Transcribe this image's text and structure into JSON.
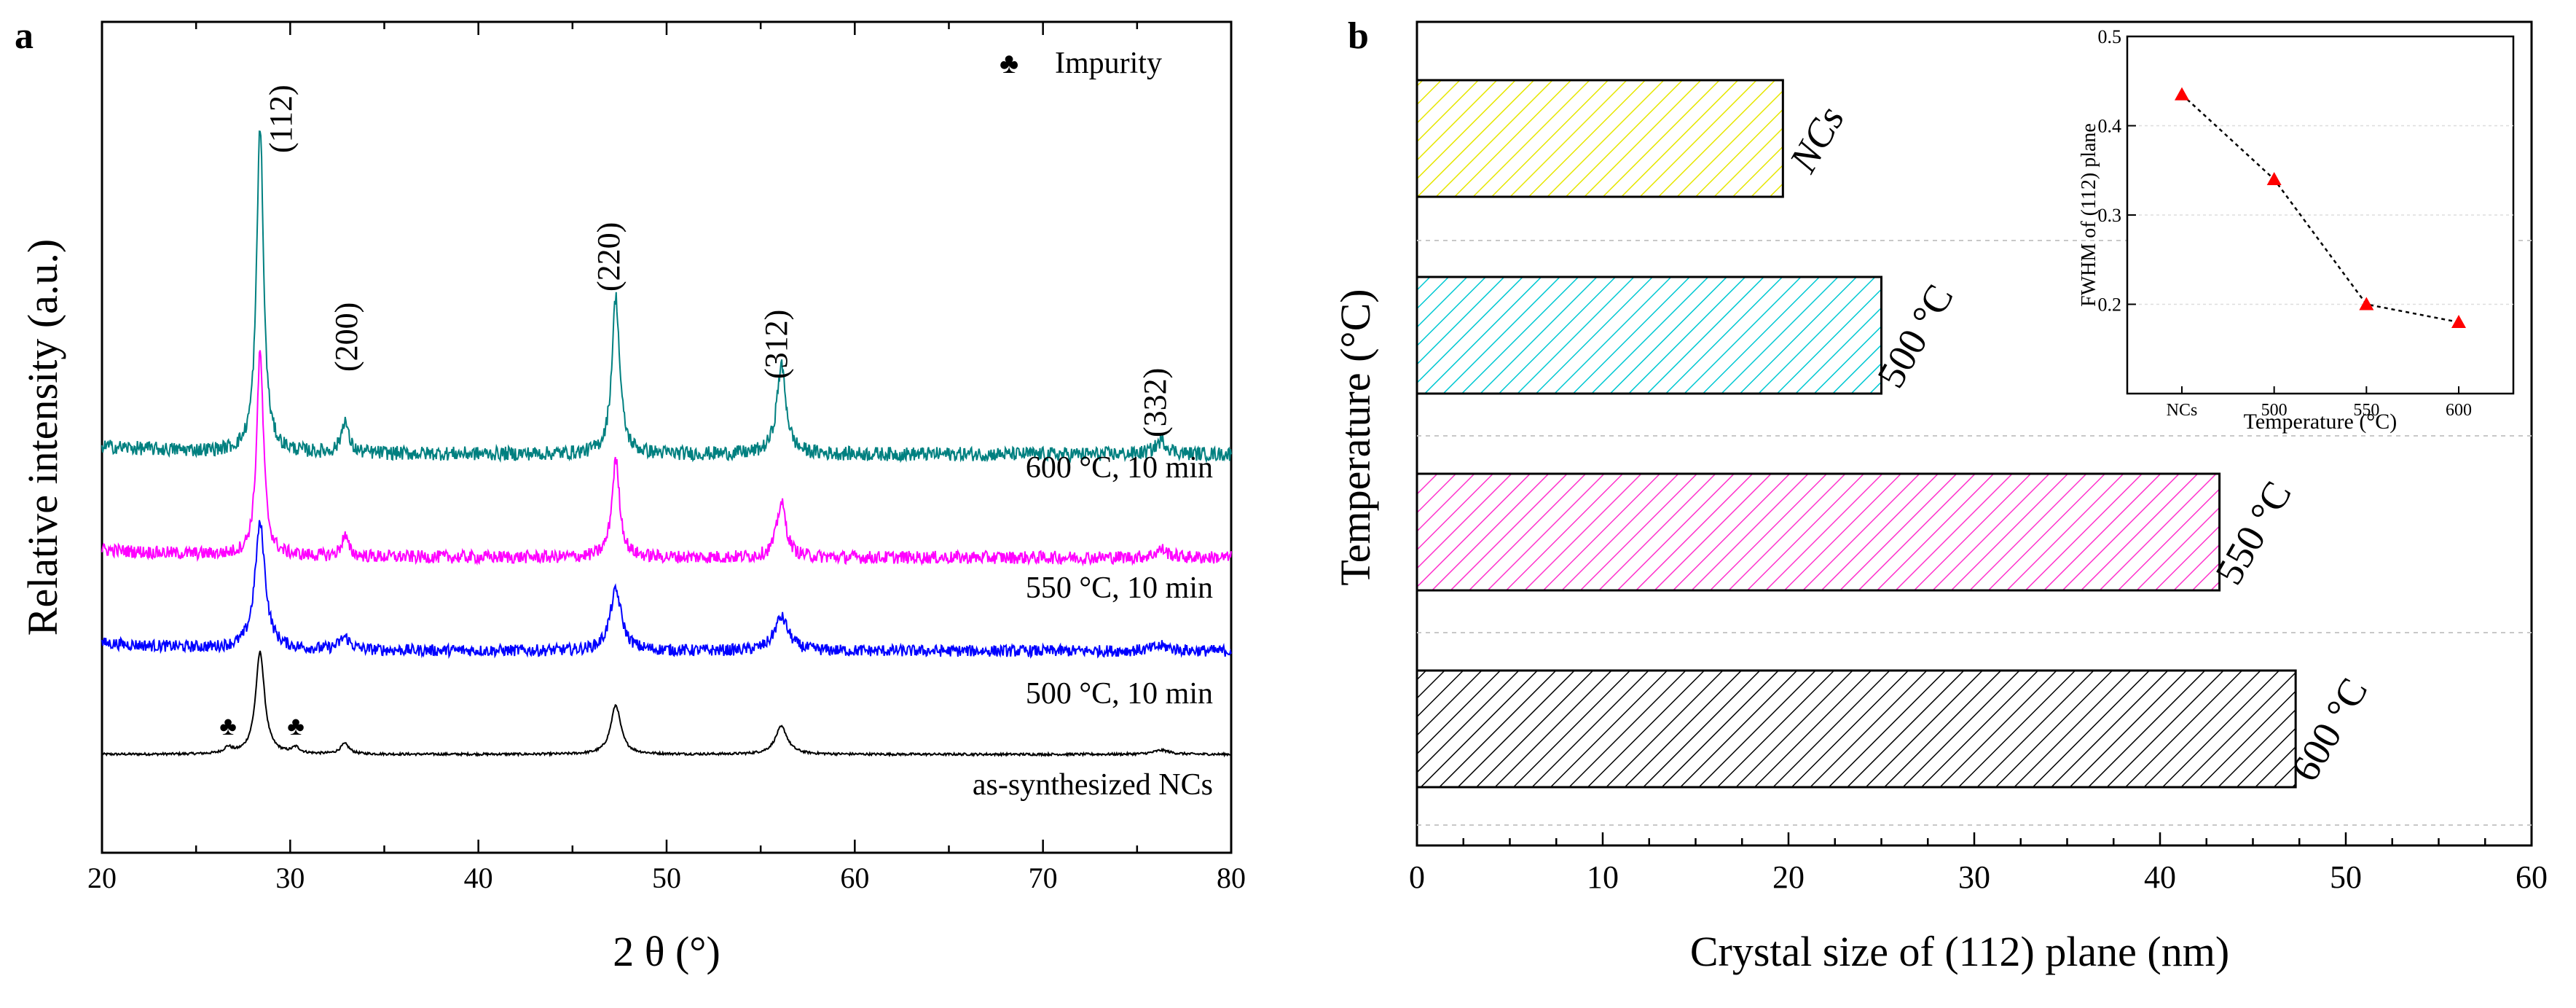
{
  "chart_data": [
    {
      "panel_label": "a",
      "type": "line",
      "title": "",
      "xlabel": "2 θ (°)",
      "ylabel": "Relative intensity (a.u.)",
      "xlim": [
        20,
        80
      ],
      "xticks": [
        20,
        30,
        40,
        50,
        60,
        70,
        80
      ],
      "y_units": "arbitrary (stacked traces)",
      "legend": {
        "symbol": "♣",
        "text": "Impurity",
        "placement": "top-right"
      },
      "series": [
        {
          "name": "as-synthesized NCs",
          "label_text": "as-synthesized NCs",
          "color": "#000000",
          "baseline": 0.0,
          "peak_scale": 1.0,
          "noise": 0.012,
          "impurity_peaks": true
        },
        {
          "name": "500 °C, 10 min",
          "label_text": "500 °C, 10 min",
          "color": "#0000ff",
          "baseline": 1.05,
          "peak_scale": 1.05,
          "noise": 0.02,
          "impurity_peaks": false
        },
        {
          "name": "550 °C, 10 min",
          "label_text": "550 °C, 10 min",
          "color": "#ff00ff",
          "baseline": 2.0,
          "peak_scale": 1.3,
          "noise": 0.022,
          "impurity_peaks": false
        },
        {
          "name": "600 °C, 10 min",
          "label_text": "600 °C, 10 min",
          "color": "#008080",
          "baseline": 3.05,
          "peak_scale": 1.6,
          "noise": 0.024,
          "impurity_peaks": false
        }
      ],
      "peaks": [
        {
          "hkl": "(112)",
          "two_theta": 28.4,
          "rel_height": 1.0
        },
        {
          "hkl": "(200)",
          "two_theta": 32.9,
          "rel_height": 0.1
        },
        {
          "hkl": "(220)",
          "two_theta": 47.3,
          "rel_height": 0.48
        },
        {
          "hkl": "(312)",
          "two_theta": 56.1,
          "rel_height": 0.27
        },
        {
          "hkl": "(332)",
          "two_theta": 76.3,
          "rel_height": 0.04
        }
      ],
      "impurity_positions": [
        26.7,
        30.3
      ]
    },
    {
      "panel_label": "b",
      "type": "bar",
      "orientation": "horizontal",
      "xlabel": "Crystal size of (112) plane (nm)",
      "ylabel": "Temperature (°C)",
      "xlim": [
        0,
        60
      ],
      "xticks": [
        0,
        10,
        20,
        30,
        40,
        50,
        60
      ],
      "categories": [
        "NCs",
        "500 °C",
        "550 °C",
        "600 °C"
      ],
      "values": [
        19.7,
        25.0,
        43.2,
        47.3
      ],
      "bar_colors": [
        "#e6e600",
        "#00c8d2",
        "#ff33cc",
        "#000000"
      ],
      "fill": "diagonal hatch"
    },
    {
      "panel_label": "b-inset",
      "type": "scatter",
      "xlabel": "Temperature (°C)",
      "ylabel": "FWHM of (112) plane",
      "categories": [
        "NCs",
        "500",
        "550",
        "600"
      ],
      "values": [
        0.435,
        0.34,
        0.2,
        0.18
      ],
      "ylim": [
        0.1,
        0.5
      ],
      "yticks": [
        "0.2",
        "0.3",
        "0.4",
        "0.5"
      ],
      "marker": "triangle",
      "marker_color": "#ff0000",
      "line_style": "dotted"
    }
  ]
}
